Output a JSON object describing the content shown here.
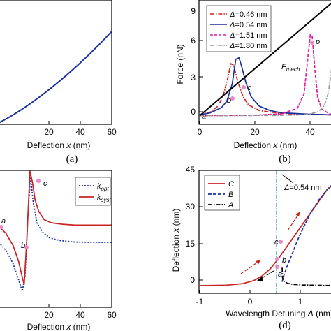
{
  "chart_data": [
    {
      "panel_label": "(a)",
      "type": "line",
      "xlabel": "Deflection x (nm)",
      "xlim": [
        -15,
        60
      ],
      "ylim": [
        0,
        1
      ],
      "x_ticks": [
        20,
        40,
        60
      ],
      "series": [
        {
          "color": "#1a2f9e",
          "dash": "solid",
          "x": [
            -15,
            0,
            10,
            20,
            30,
            40,
            50,
            60
          ],
          "y": [
            0.0,
            0.12,
            0.22,
            0.33,
            0.46,
            0.6,
            0.76,
            0.94
          ]
        }
      ]
    },
    {
      "panel_label": "(b)",
      "type": "line",
      "xlabel": "Deflection x (nm)",
      "ylabel": "Force (nN)",
      "xlim": [
        0,
        50
      ],
      "ylim": [
        -0.6,
        8
      ],
      "x_ticks": [
        0,
        20,
        40
      ],
      "y_ticks": [
        0,
        3,
        6
      ],
      "legend_position": "top-left",
      "series": [
        {
          "name": "Δ=0.46 nm",
          "color": "#cc2222",
          "dash": "dashdot",
          "x": [
            0,
            4,
            7,
            9,
            10.5,
            11.5,
            12.5,
            14,
            16,
            18,
            22,
            30,
            40,
            50
          ],
          "y": [
            0.05,
            0.25,
            0.7,
            1.6,
            2.7,
            3.6,
            3.5,
            2.4,
            1.3,
            0.75,
            0.35,
            0.15,
            0.08,
            0.05
          ]
        },
        {
          "name": "Δ=0.54 nm",
          "color": "#1a2f9e",
          "dash": "solid",
          "x": [
            0,
            4,
            8,
            10,
            12,
            13.3,
            14.5,
            15.5,
            17,
            19,
            22,
            26,
            30,
            40,
            50
          ],
          "y": [
            0.05,
            0.2,
            0.55,
            1.0,
            2.2,
            3.9,
            4.0,
            3.4,
            2.3,
            1.3,
            0.65,
            0.35,
            0.2,
            0.1,
            0.05
          ]
        },
        {
          "name": "Δ=1.51 nm",
          "color": "#e0209e",
          "dash": "dashed",
          "x": [
            0,
            20,
            30,
            36,
            38.5,
            39.8,
            40.8,
            41.5,
            42.5,
            43.5,
            45,
            48,
            50
          ],
          "y": [
            0.0,
            0.03,
            0.12,
            0.5,
            1.5,
            3.8,
            5.6,
            5.5,
            3.2,
            1.3,
            0.45,
            0.12,
            0.06
          ]
        },
        {
          "name": "Δ=1.80 nm",
          "color": "#999999",
          "dash": "dashdot",
          "x": [
            0,
            30,
            40,
            44,
            46,
            47.5,
            48.5,
            49.5,
            50
          ],
          "y": [
            0.0,
            0.02,
            0.08,
            0.3,
            0.7,
            1.6,
            3.0,
            4.6,
            5.0
          ]
        },
        {
          "name": "",
          "color": "#000000",
          "dash": "solid",
          "x": [
            0,
            50
          ],
          "y": [
            0.0,
            8.0
          ]
        }
      ],
      "annotations": [
        "F_mech",
        "a",
        "b",
        "c",
        "p"
      ]
    },
    {
      "panel_label": "(c)",
      "type": "line",
      "xlabel": "Deflection x (nm)",
      "xlim": [
        -2,
        60
      ],
      "ylim": [
        -1.4,
        1.6
      ],
      "x_ticks": [
        20,
        40,
        60
      ],
      "legend_position": "top-right",
      "series": [
        {
          "name": "k_opt",
          "color": "#1a2f9e",
          "dash": "dotted",
          "x": [
            -2,
            2,
            6,
            9,
            11,
            12.5,
            14,
            15.5,
            17,
            19,
            22,
            26,
            32,
            40,
            60
          ],
          "y": [
            0.02,
            -0.15,
            -0.45,
            -0.8,
            -1.05,
            -0.7,
            0.6,
            1.45,
            0.9,
            0.45,
            0.25,
            0.12,
            0.06,
            0.03,
            0.02
          ]
        },
        {
          "name": "k_syst",
          "color": "#cc2222",
          "dash": "solid",
          "x": [
            -2,
            2,
            6,
            9,
            11,
            12,
            13.5,
            15.2,
            16.5,
            18,
            20,
            23,
            27,
            33,
            40,
            60
          ],
          "y": [
            0.38,
            0.22,
            -0.05,
            -0.4,
            -0.75,
            -0.9,
            0.1,
            1.58,
            1.35,
            0.95,
            0.7,
            0.52,
            0.45,
            0.42,
            0.4,
            0.4
          ]
        }
      ],
      "annotations": [
        "a",
        "b",
        "c"
      ]
    },
    {
      "panel_label": "(d)",
      "type": "line",
      "xlabel": "Wavelength Detuning Δ (nm)",
      "ylabel": "Deflection x (nm)",
      "xlim": [
        -1,
        1.5
      ],
      "ylim": [
        -3,
        45
      ],
      "x_ticks": [
        -1,
        0,
        1
      ],
      "y_ticks": [
        0,
        15,
        30,
        45
      ],
      "legend_position": "top-left",
      "series": [
        {
          "name": "C",
          "color": "#cc2222",
          "dash": "solid",
          "x": [
            -1,
            -0.5,
            -0.2,
            0,
            0.15,
            0.3,
            0.45,
            0.6,
            0.75,
            0.9,
            1.05,
            1.2,
            1.35,
            1.5
          ],
          "y": [
            0,
            0.2,
            0.8,
            2.0,
            3.8,
            6.5,
            10.5,
            15.0,
            19.5,
            24.0,
            28.5,
            33.0,
            37.5,
            40.0
          ]
        },
        {
          "name": "B",
          "color": "#1a2f9e",
          "dash": "dashed",
          "x": [
            0.52,
            0.56,
            0.62,
            0.7,
            0.8,
            0.92,
            1.05,
            1.2,
            1.35,
            1.5
          ],
          "y": [
            1.5,
            4.5,
            8.0,
            12.0,
            17.5,
            23.0,
            28.5,
            33.5,
            37.5,
            40.5
          ]
        },
        {
          "name": "A",
          "color": "#000000",
          "dash": "dashdot",
          "x": [
            0.52,
            0.53,
            0.56,
            0.62,
            0.72,
            0.9,
            1.1,
            1.3,
            1.5
          ],
          "y": [
            7.0,
            3.0,
            1.6,
            0.9,
            0.5,
            0.25,
            0.15,
            0.08,
            0.05
          ]
        }
      ],
      "annotations": [
        "Δ=0.54 nm",
        "a",
        "b",
        "c"
      ]
    }
  ]
}
